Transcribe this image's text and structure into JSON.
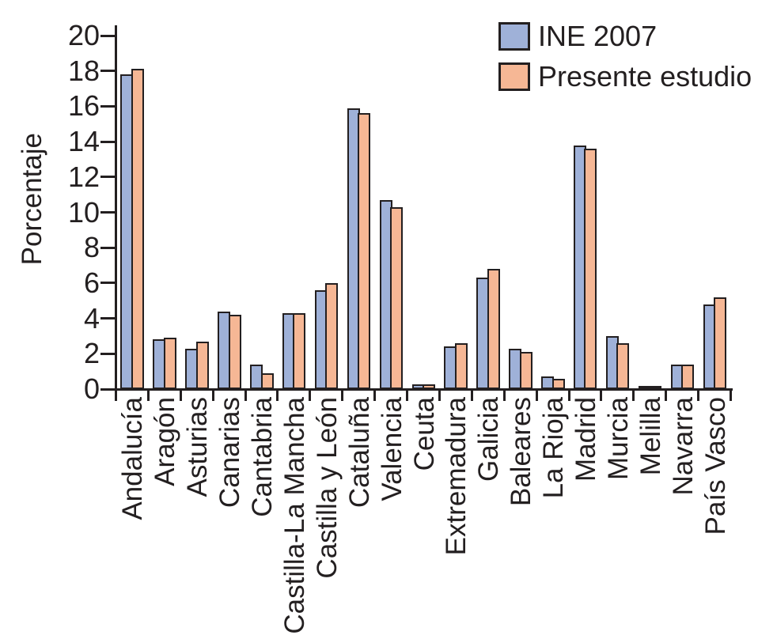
{
  "chart_data": {
    "type": "bar",
    "title": "",
    "xlabel": "",
    "ylabel": "Porcentaje",
    "ylim": [
      0,
      20
    ],
    "yticks": [
      0,
      2,
      4,
      6,
      8,
      10,
      12,
      14,
      16,
      18,
      20
    ],
    "grid": false,
    "legend_position": "top-right",
    "categories": [
      "Andalucía",
      "Aragón",
      "Asturias",
      "Canarias",
      "Cantabria",
      "Castilla-La Mancha",
      "Castilla y León",
      "Cataluña",
      "Valencia",
      "Ceuta",
      "Extremadura",
      "Galicia",
      "Baleares",
      "La Rioja",
      "Madrid",
      "Murcia",
      "Melilla",
      "Navarra",
      "País Vasco"
    ],
    "series": [
      {
        "name": "INE 2007",
        "color": "#9fb1d8",
        "values": [
          17.8,
          2.8,
          2.3,
          4.4,
          1.4,
          4.3,
          5.6,
          15.9,
          10.7,
          0.25,
          2.4,
          6.3,
          2.3,
          0.7,
          13.8,
          3.0,
          0.2,
          1.4,
          4.8
        ]
      },
      {
        "name": "Presente estudio",
        "color": "#f6b795",
        "values": [
          18.1,
          2.9,
          2.7,
          4.2,
          0.9,
          4.3,
          6.0,
          15.6,
          10.3,
          0.25,
          2.6,
          6.8,
          2.1,
          0.6,
          13.6,
          2.6,
          0.2,
          1.4,
          5.2
        ]
      }
    ],
    "axis_color": "#231f20",
    "background_color": "#ffffff"
  }
}
